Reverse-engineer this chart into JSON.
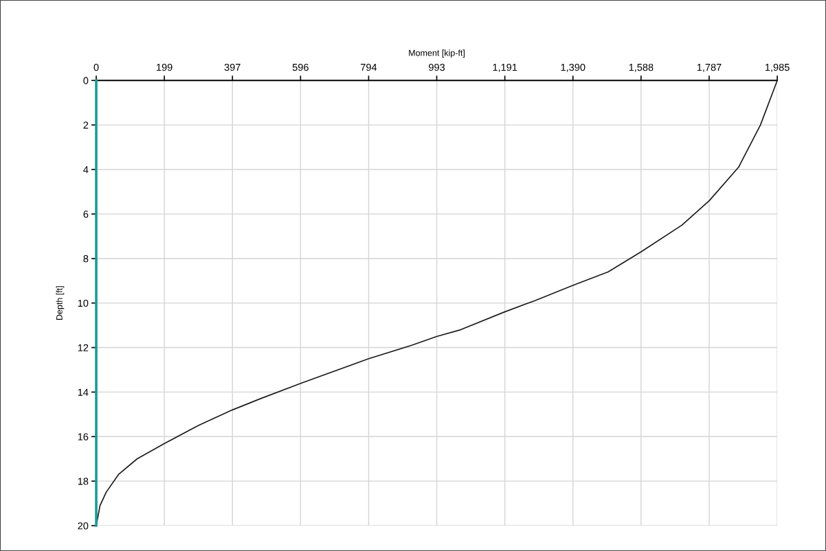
{
  "chart_data": {
    "type": "line",
    "xlabel": "Moment [kip-ft]",
    "ylabel": "Depth [ft]",
    "series": [
      {
        "color": "#1a9a9a",
        "x": [
          0,
          0,
          0,
          0,
          0
        ],
        "values": [
          0,
          5,
          10,
          15,
          20
        ]
      },
      {
        "color": "#1a1a1a",
        "x": [
          1985,
          1936,
          1872,
          1787,
          1707,
          1588,
          1492,
          1390,
          1277,
          1190,
          1062,
          993,
          919,
          794,
          597,
          478,
          397,
          298,
          200,
          119,
          65,
          29,
          11,
          0
        ],
        "values": [
          0,
          2.0,
          3.9,
          5.4,
          6.5,
          7.7,
          8.6,
          9.2,
          9.9,
          10.4,
          11.2,
          11.5,
          11.9,
          12.5,
          13.6,
          14.3,
          14.8,
          15.5,
          16.3,
          17.0,
          17.7,
          18.5,
          19.1,
          20
        ]
      }
    ],
    "xlim": [
      0,
      1985
    ],
    "xticks": [
      0,
      {
        "value": 198.5,
        "label": "199"
      },
      {
        "value": 397,
        "label": "397"
      },
      {
        "value": 595.5,
        "label": "596"
      },
      {
        "value": 794,
        "label": "794"
      },
      {
        "value": 992.5,
        "label": "993"
      },
      {
        "value": 1191,
        "label": "1,191"
      },
      {
        "value": 1389.5,
        "label": "1,390"
      },
      {
        "value": 1588,
        "label": "1,588"
      },
      {
        "value": 1786.5,
        "label": "1,787"
      },
      {
        "value": 1985,
        "label": "1,985"
      }
    ],
    "ylim": [
      20,
      0
    ],
    "yticks": [
      0,
      2,
      4,
      6,
      8,
      10,
      12,
      14,
      16,
      18,
      20
    ],
    "grid": true,
    "marker": "none",
    "line_style": "solid"
  }
}
